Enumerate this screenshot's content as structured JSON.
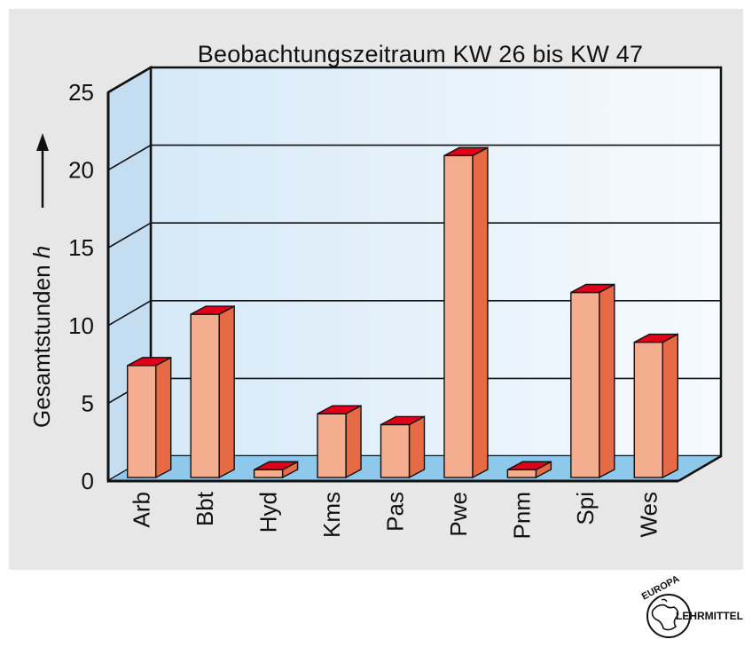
{
  "chart_data": {
    "type": "bar",
    "title": "Beobachtungszeitraum KW 26 bis KW 47",
    "ylabel": "Gesamtstunden h",
    "ylim": [
      0,
      25
    ],
    "yticks": [
      0,
      5,
      10,
      15,
      20,
      25
    ],
    "categories": [
      "Arb",
      "Bbt",
      "Hyd",
      "Kms",
      "Pas",
      "Pwe",
      "Pnm",
      "Spi",
      "Wes"
    ],
    "values": [
      7.2,
      10.5,
      0.5,
      4.1,
      3.4,
      20.7,
      0.5,
      11.9,
      8.7
    ],
    "grid": true,
    "colors": {
      "bar_front": "#f4ad8e",
      "bar_side": "#e66a46",
      "bar_top": "#e0001a",
      "floor": "#8ec8ea",
      "back_wall": "#e4f1fb",
      "side_wall": "#c4ddf1"
    }
  },
  "logo": {
    "line1": "EUROPA",
    "line2": "LEHRMITTEL"
  }
}
